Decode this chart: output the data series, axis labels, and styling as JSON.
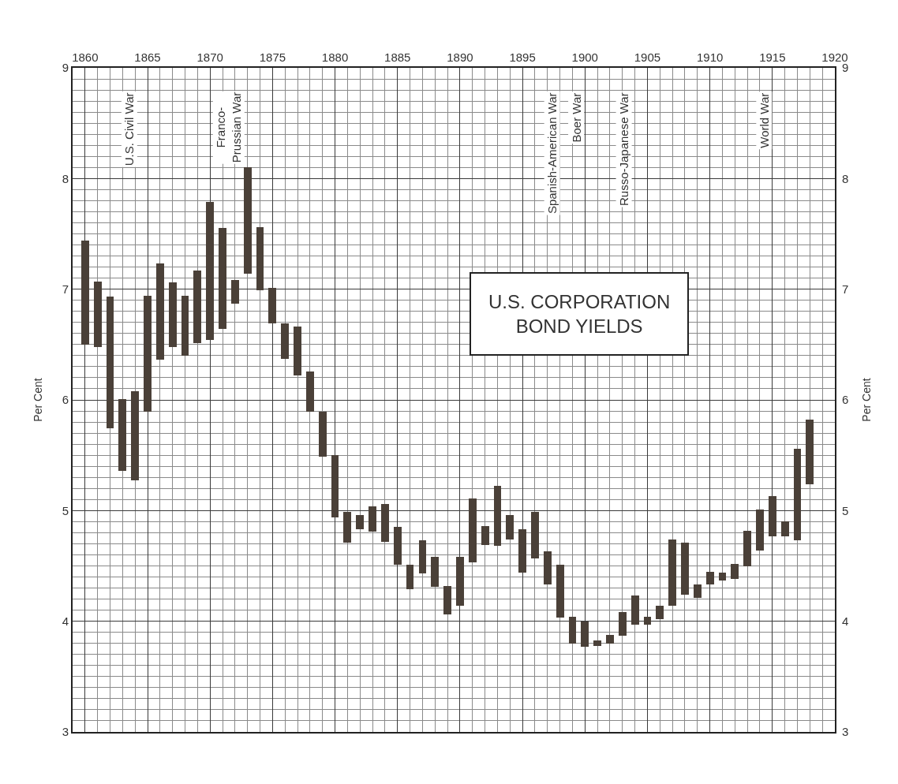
{
  "chart_data": {
    "type": "bar",
    "title": "U.S. CORPORATION\nBOND YIELDS",
    "ylabel": "Per Cent",
    "y2label": "Per Cent",
    "x": [
      1860,
      1861,
      1862,
      1863,
      1864,
      1865,
      1866,
      1867,
      1868,
      1869,
      1870,
      1871,
      1872,
      1873,
      1874,
      1875,
      1876,
      1877,
      1878,
      1879,
      1880,
      1881,
      1882,
      1883,
      1884,
      1885,
      1886,
      1887,
      1888,
      1889,
      1890,
      1891,
      1892,
      1893,
      1894,
      1895,
      1896,
      1897,
      1898,
      1899,
      1900,
      1901,
      1902,
      1903,
      1904,
      1905,
      1906,
      1907,
      1908,
      1909,
      1910,
      1911,
      1912,
      1913,
      1914,
      1915,
      1916,
      1917,
      1918
    ],
    "base": [
      6.5,
      6.48,
      5.74,
      5.36,
      5.27,
      5.89,
      6.36,
      6.48,
      6.4,
      6.51,
      6.54,
      6.64,
      6.87,
      7.14,
      6.99,
      6.69,
      6.37,
      6.22,
      5.89,
      5.49,
      4.94,
      4.71,
      4.83,
      4.81,
      4.72,
      4.51,
      4.29,
      4.43,
      4.31,
      4.06,
      4.14,
      4.53,
      4.69,
      4.68,
      4.74,
      4.44,
      4.57,
      4.33,
      4.03,
      3.8,
      3.77,
      3.78,
      3.8,
      3.87,
      3.97,
      3.97,
      4.02,
      4.14,
      4.24,
      4.21,
      4.33,
      4.37,
      4.38,
      4.5,
      4.64,
      4.77,
      4.77,
      4.73,
      5.24
    ],
    "values": [
      0.94,
      0.59,
      1.19,
      0.65,
      0.81,
      1.05,
      0.87,
      0.58,
      0.54,
      0.66,
      1.25,
      0.91,
      0.21,
      0.96,
      0.57,
      0.32,
      0.32,
      0.44,
      0.37,
      0.4,
      0.56,
      0.28,
      0.13,
      0.23,
      0.34,
      0.34,
      0.22,
      0.3,
      0.27,
      0.26,
      0.44,
      0.58,
      0.17,
      0.54,
      0.22,
      0.39,
      0.42,
      0.3,
      0.48,
      0.24,
      0.23,
      0.05,
      0.08,
      0.21,
      0.26,
      0.07,
      0.12,
      0.6,
      0.47,
      0.12,
      0.12,
      0.07,
      0.14,
      0.32,
      0.37,
      0.36,
      0.13,
      0.83,
      0.58
    ],
    "color": "#4a4038",
    "xlim": [
      1859,
      1920
    ],
    "xticks": [
      1860,
      1865,
      1870,
      1875,
      1880,
      1885,
      1890,
      1895,
      1900,
      1905,
      1910,
      1915,
      1920
    ],
    "ylim": [
      3,
      9
    ],
    "yticks": [
      3,
      4,
      5,
      6,
      7,
      8,
      9
    ],
    "y2lim": [
      3,
      9
    ],
    "y2ticks": [
      3,
      4,
      5,
      6,
      7,
      8,
      9
    ],
    "grid": true,
    "annotations": [
      "U.S. Civil War",
      "Franco-\nPrussian War",
      "Spanish-American War",
      "Boer War",
      "Russo-Japanese War",
      "World War"
    ]
  }
}
